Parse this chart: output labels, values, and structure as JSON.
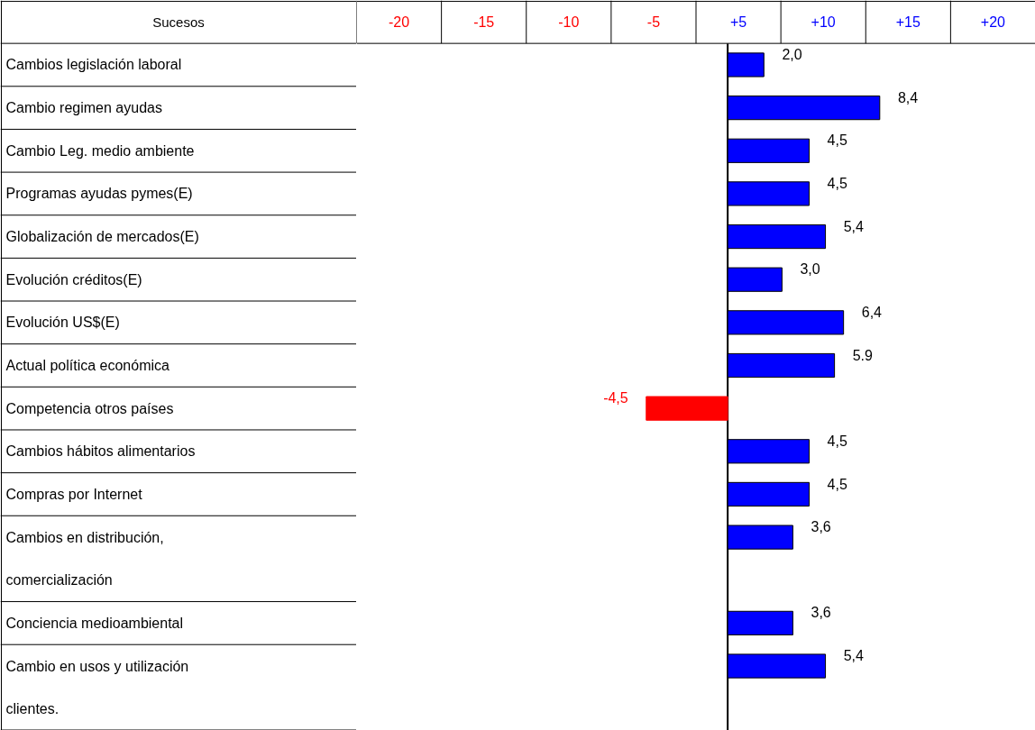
{
  "chart_data": {
    "type": "bar",
    "orientation": "horizontal",
    "ylabel": "Sucesos",
    "categories": [
      "Cambios legislación laboral",
      "Cambio regimen ayudas",
      "Cambio Leg. medio ambiente",
      "Programas ayudas pymes(E)",
      "Globalización de mercados(E)",
      "Evolución créditos(E)",
      "Evolución US$(E)",
      "Actual política económica",
      "Competencia otros países",
      "Cambios  hábitos alimentarios",
      "Compras por Internet",
      "Cambios en distribución, comercialización",
      "Conciencia medioambiental",
      "Cambio en usos y utilización clientes."
    ],
    "values": [
      2.0,
      8.4,
      4.5,
      4.5,
      5.4,
      3.0,
      6.4,
      5.9,
      -4.5,
      4.5,
      4.5,
      3.6,
      3.6,
      5.4
    ],
    "value_labels": [
      "2,0",
      "8,4",
      "4,5",
      "4,5",
      "5,4",
      "3,0",
      "6,4",
      "5.9",
      "-4,5",
      "4,5",
      "4,5",
      "3,6",
      "3,6",
      "5,4"
    ],
    "colors": [
      "#0000ff",
      "#0000ff",
      "#0000ff",
      "#0000ff",
      "#0000ff",
      "#0000ff",
      "#0000ff",
      "#0000ff",
      "#ff0000",
      "#0000ff",
      "#0000ff",
      "#0000ff",
      "#0000ff",
      "#0000ff"
    ],
    "xlim": [
      -20.5,
      17
    ],
    "annotations": [
      "-20",
      "-15",
      "-10",
      "-5",
      "+5",
      "+10",
      "+15",
      "+20"
    ],
    "grid": false
  }
}
